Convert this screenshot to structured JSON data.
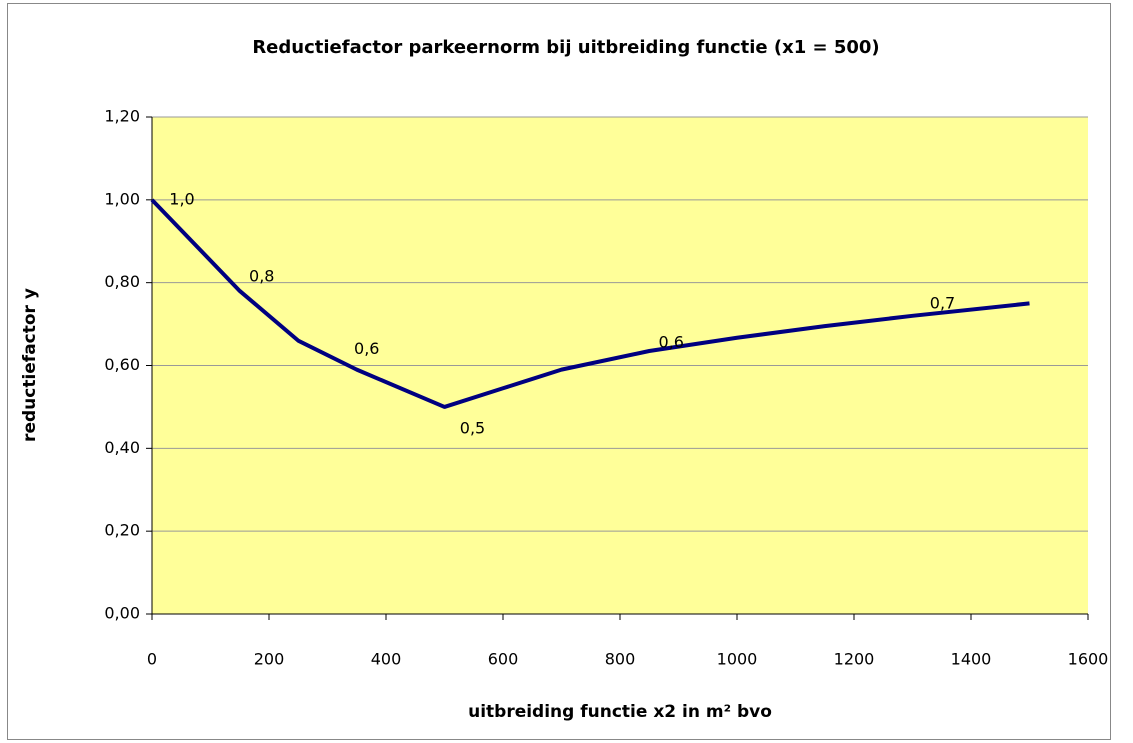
{
  "chart_data": {
    "type": "line",
    "title": "Reductiefactor parkeernorm bij uitbreiding functie (x1 = 500)",
    "x_label": "uitbreiding functie x2 in m² bvo",
    "y_label": "reductiefactor y",
    "x": [
      0,
      150,
      250,
      350,
      500,
      600,
      700,
      850,
      1000,
      1150,
      1300,
      1500
    ],
    "series": [
      {
        "name": "reductiefactor",
        "color": "#000080",
        "values": [
          1.0,
          0.78,
          0.66,
          0.59,
          0.5,
          0.545,
          0.59,
          0.635,
          0.667,
          0.695,
          0.72,
          0.75
        ],
        "value_labels": [
          "1,0",
          "0,8",
          null,
          "0,6",
          "0,5",
          null,
          null,
          "0,6",
          null,
          null,
          "0,7",
          null
        ]
      }
    ],
    "xlim": [
      0,
      1600
    ],
    "xticks": [
      0,
      200,
      400,
      600,
      800,
      1000,
      1200,
      1400,
      1600
    ],
    "ylim": [
      0,
      1.2
    ],
    "yticks": [
      {
        "value": 0,
        "label": "0,00"
      },
      {
        "value": 0.2,
        "label": "0,20"
      },
      {
        "value": 0.4,
        "label": "0,40"
      },
      {
        "value": 0.6,
        "label": "0,60"
      },
      {
        "value": 0.8,
        "label": "0,80"
      },
      {
        "value": 1.0,
        "label": "1,00"
      },
      {
        "value": 1.2,
        "label": "1,20"
      }
    ],
    "grid": true,
    "plot_background": "#ffff99"
  }
}
